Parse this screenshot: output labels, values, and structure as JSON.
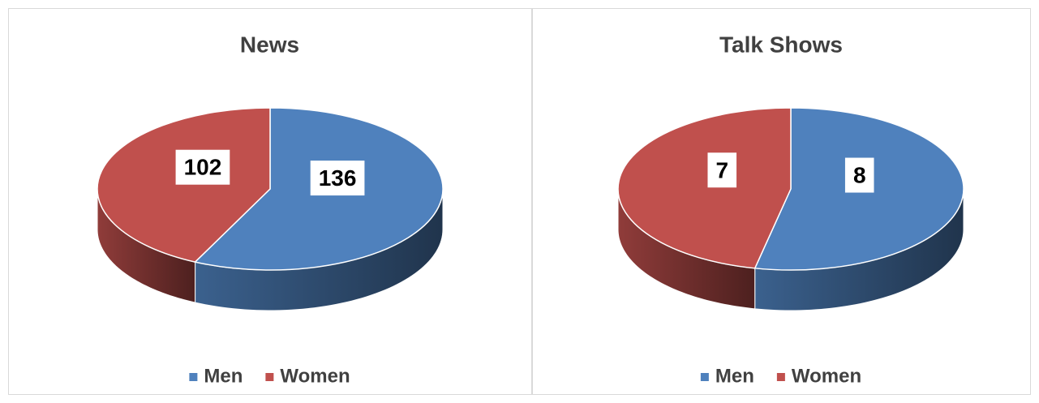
{
  "chart_data": [
    {
      "type": "pie",
      "title": "News",
      "categories": [
        "Men",
        "Women"
      ],
      "values": [
        136,
        102
      ],
      "colors": [
        "#4f81bd",
        "#c0504d"
      ],
      "legend": "bottom"
    },
    {
      "type": "pie",
      "title": "Talk Shows",
      "categories": [
        "Men",
        "Women"
      ],
      "values": [
        8,
        7
      ],
      "colors": [
        "#4f81bd",
        "#c0504d"
      ],
      "legend": "bottom"
    }
  ]
}
